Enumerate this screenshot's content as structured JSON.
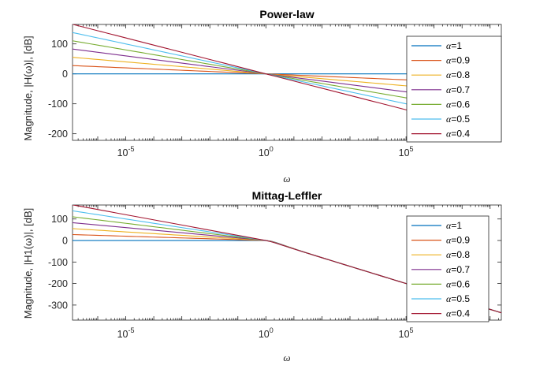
{
  "chart_data": [
    {
      "type": "line",
      "title": "Power-law",
      "xlabel": "ω",
      "ylabel": "Magnitude, |H(ω)|, [dB]",
      "xscale": "log",
      "xlim_log10": [
        -6.9,
        8.4
      ],
      "ylim": [
        -222,
        165
      ],
      "yticks": [
        100,
        0,
        -100,
        -200
      ],
      "ytick_labels": [
        "100",
        "0",
        "-100",
        "-200"
      ],
      "xticks_log10": [
        -5,
        0,
        5
      ],
      "xtick_labels": [
        {
          "base": "10",
          "exp": "-5"
        },
        {
          "base": "10",
          "exp": "0"
        },
        {
          "base": "10",
          "exp": "5"
        }
      ],
      "model": "power-law",
      "legend_position": "right",
      "series": [
        {
          "name": "α=1",
          "alpha": 1.0,
          "color": "#0072BD",
          "slope_db_per_decade": 0
        },
        {
          "name": "α=0.9",
          "alpha": 0.9,
          "color": "#D95319",
          "slope_db_per_decade": -4
        },
        {
          "name": "α=0.8",
          "alpha": 0.8,
          "color": "#EDB120",
          "slope_db_per_decade": -8
        },
        {
          "name": "α=0.7",
          "alpha": 0.7,
          "color": "#7E2F8E",
          "slope_db_per_decade": -12
        },
        {
          "name": "α=0.6",
          "alpha": 0.6,
          "color": "#77AC30",
          "slope_db_per_decade": -16
        },
        {
          "name": "α=0.5",
          "alpha": 0.5,
          "color": "#4DBEEE",
          "slope_db_per_decade": -20
        },
        {
          "name": "α=0.4",
          "alpha": 0.4,
          "color": "#A2142F",
          "slope_db_per_decade": -24
        }
      ]
    },
    {
      "type": "line",
      "title": "Mittag-Leffler",
      "xlabel": "ω",
      "ylabel": "Magnitude, |H1(ω)|, [dB]",
      "xscale": "log",
      "xlim_log10": [
        -6.9,
        8.4
      ],
      "ylim": [
        -370,
        165
      ],
      "yticks": [
        100,
        0,
        -100,
        -200,
        -300
      ],
      "ytick_labels": [
        "100",
        "0",
        "-100",
        "-200",
        "-300"
      ],
      "xticks_log10": [
        -5,
        0,
        5
      ],
      "xtick_labels": [
        {
          "base": "10",
          "exp": "-5"
        },
        {
          "base": "10",
          "exp": "0"
        },
        {
          "base": "10",
          "exp": "5"
        }
      ],
      "model": "mittag-leffler",
      "high_freq_slope_db_per_decade": -40,
      "legend_position": "right",
      "series": [
        {
          "name": "α=1",
          "alpha": 1.0,
          "color": "#0072BD",
          "slope_db_per_decade": 0
        },
        {
          "name": "α=0.9",
          "alpha": 0.9,
          "color": "#D95319",
          "slope_db_per_decade": -4
        },
        {
          "name": "α=0.8",
          "alpha": 0.8,
          "color": "#EDB120",
          "slope_db_per_decade": -8
        },
        {
          "name": "α=0.7",
          "alpha": 0.7,
          "color": "#7E2F8E",
          "slope_db_per_decade": -12
        },
        {
          "name": "α=0.6",
          "alpha": 0.6,
          "color": "#77AC30",
          "slope_db_per_decade": -16
        },
        {
          "name": "α=0.5",
          "alpha": 0.5,
          "color": "#4DBEEE",
          "slope_db_per_decade": -20
        },
        {
          "name": "α=0.4",
          "alpha": 0.4,
          "color": "#A2142F",
          "slope_db_per_decade": -24
        }
      ]
    }
  ]
}
